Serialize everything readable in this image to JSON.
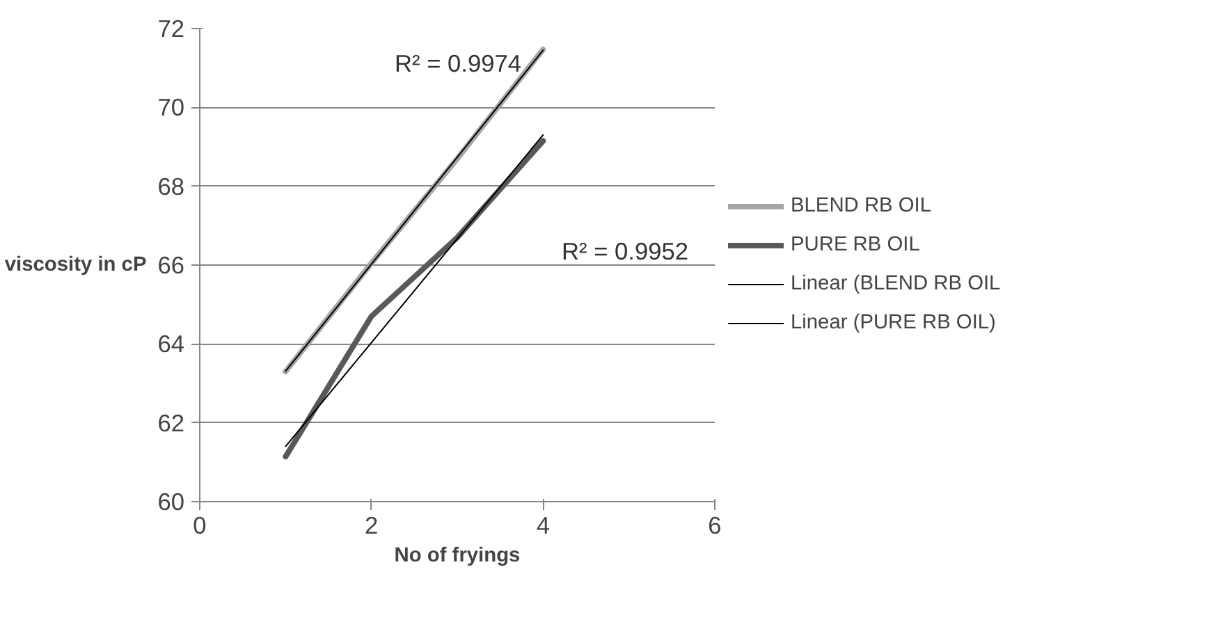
{
  "chart_data": {
    "type": "line",
    "xlabel": "No of fryings",
    "ylabel": "viscosity in cP",
    "xlim": [
      0,
      6
    ],
    "xticks": [
      0,
      2,
      4,
      6
    ],
    "ylim": [
      60,
      72
    ],
    "yticks": [
      60,
      62,
      64,
      66,
      68,
      70,
      72
    ],
    "grid": "y",
    "legend": "right",
    "marker": "none",
    "line_style": "solid",
    "series": [
      {
        "name": "BLEND RB OIL",
        "color": "#a6a6a6",
        "x": [
          1,
          2,
          3,
          4
        ],
        "values": [
          63.3,
          66.05,
          68.7,
          71.47
        ]
      },
      {
        "name": "PURE RB OIL",
        "color": "#595959",
        "x": [
          1,
          2,
          3,
          4
        ],
        "values": [
          61.14,
          64.7,
          66.7,
          69.15
        ]
      },
      {
        "name": "Linear (BLEND RB OIL",
        "color": "#000000",
        "x": [
          1,
          4
        ],
        "values": [
          63.31,
          71.45
        ]
      },
      {
        "name": "Linear (PURE RB OIL)",
        "color": "#000000",
        "x": [
          1,
          4
        ],
        "values": [
          61.4,
          69.3
        ]
      }
    ],
    "annotations": [
      "R² = 0.9974",
      "R² = 0.9952"
    ]
  }
}
